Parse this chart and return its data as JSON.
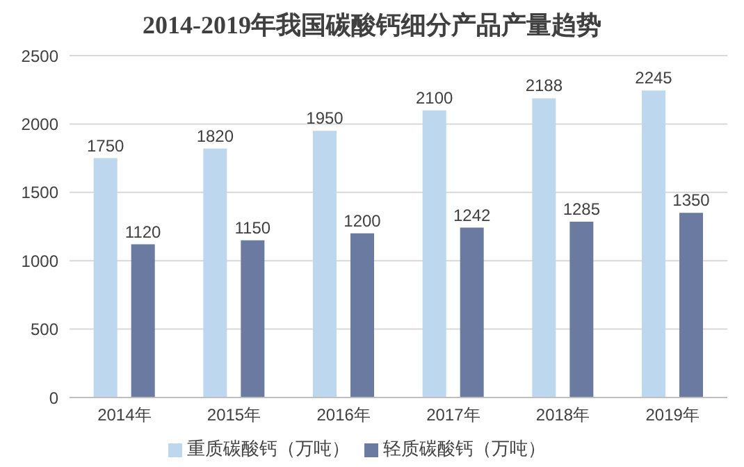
{
  "chart_data": {
    "type": "bar",
    "title": "2014-2019年我国碳酸钙细分产品产量趋势",
    "categories": [
      "2014年",
      "2015年",
      "2016年",
      "2017年",
      "2018年",
      "2019年"
    ],
    "series": [
      {
        "name": "重质碳酸钙（万吨）",
        "color": "#bdd7ee",
        "values": [
          1750,
          1820,
          1950,
          2100,
          2188,
          2245
        ]
      },
      {
        "name": "轻质碳酸钙（万吨）",
        "color": "#6b7aa1",
        "values": [
          1120,
          1150,
          1200,
          1242,
          1285,
          1350
        ]
      }
    ],
    "ylim": [
      0,
      2500
    ],
    "yticks": [
      0,
      500,
      1000,
      1500,
      2000,
      2500
    ],
    "grid": "y",
    "legend": "bottom",
    "data_labels": true
  }
}
